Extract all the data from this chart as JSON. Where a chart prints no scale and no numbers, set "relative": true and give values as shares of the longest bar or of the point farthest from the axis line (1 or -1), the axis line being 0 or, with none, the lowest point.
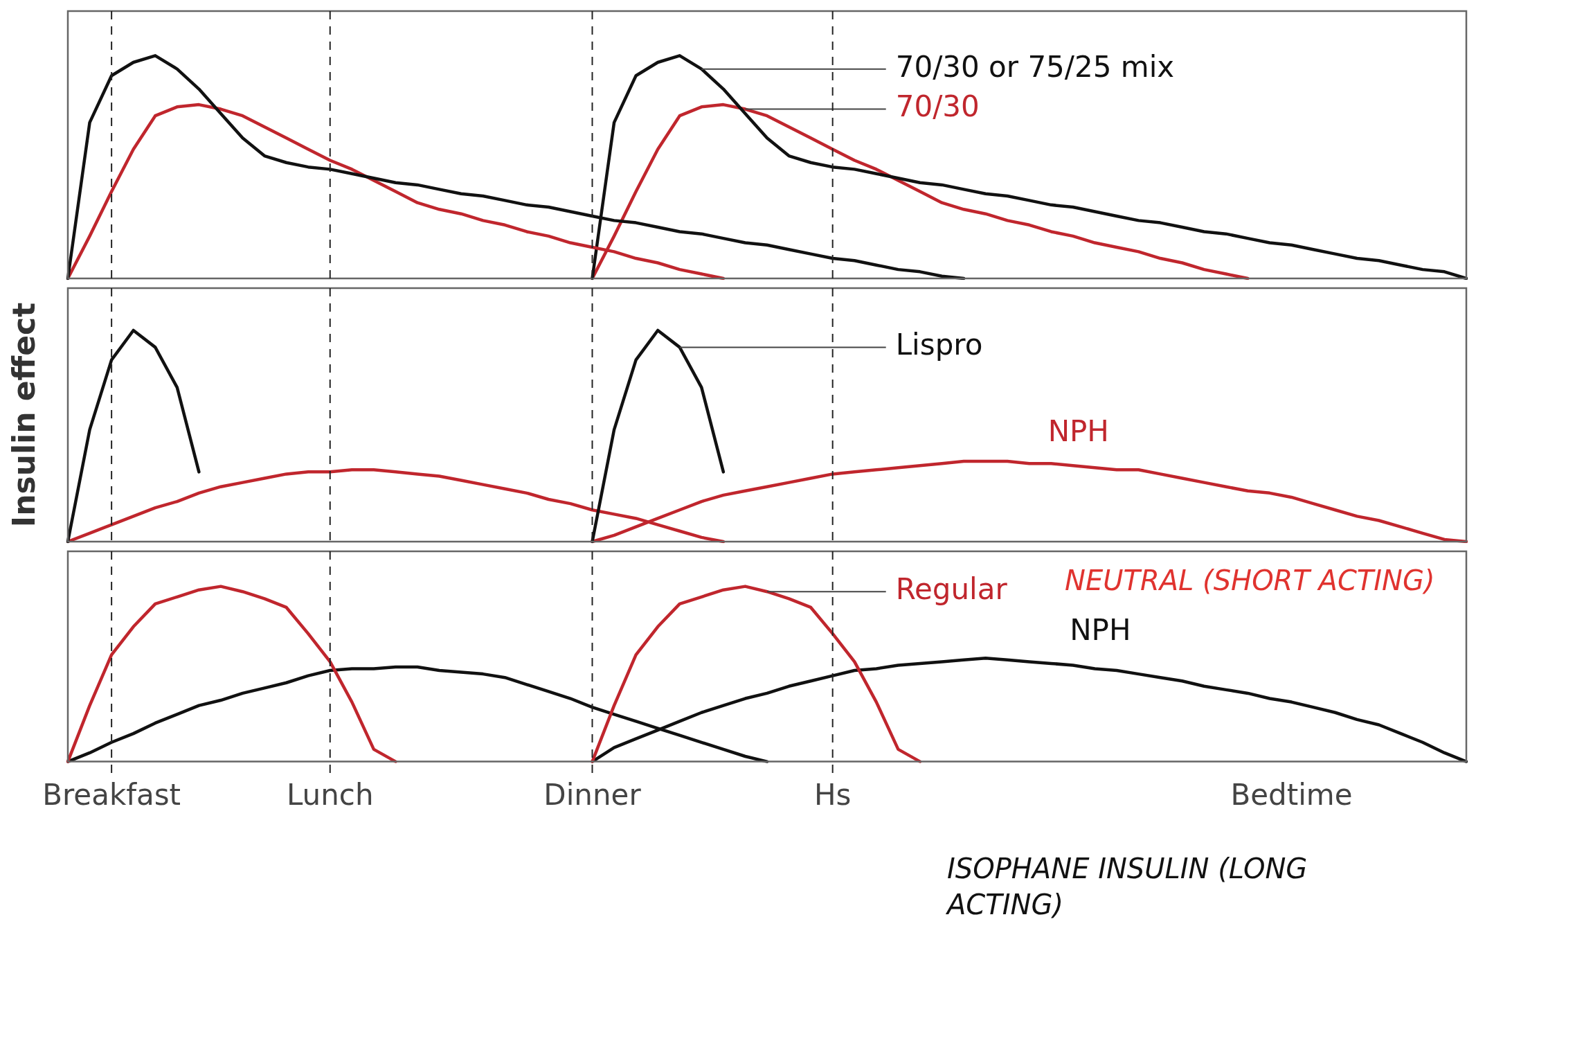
{
  "chart_data": [
    {
      "type": "line",
      "relative": true,
      "categories": [
        null,
        null,
        "Breakfast",
        null,
        null,
        null,
        null,
        null,
        null,
        null,
        null,
        null,
        "Lunch",
        null,
        null,
        null,
        null,
        null,
        null,
        null,
        null,
        null,
        null,
        null,
        "Dinner",
        null,
        null,
        null,
        null,
        null,
        null,
        null,
        null,
        null,
        null,
        "Hs",
        null,
        null,
        null,
        null,
        null,
        null,
        null,
        null,
        null,
        null,
        null,
        null,
        null,
        null,
        null,
        null,
        null,
        null,
        null,
        null,
        "Bedtime",
        null,
        null,
        null,
        null,
        null,
        null,
        null,
        null
      ],
      "tick_labels": false,
      "legend": false,
      "marker": "none",
      "line_style": "solid",
      "ref_lines": [
        {
          "axis": "x",
          "value": "Breakfast",
          "line_style": "dashed"
        },
        {
          "axis": "x",
          "value": "Lunch",
          "line_style": "dashed"
        },
        {
          "axis": "x",
          "value": "Dinner",
          "line_style": "dashed"
        },
        {
          "axis": "x",
          "value": "Hs",
          "line_style": "dashed"
        }
      ],
      "series": [
        {
          "color": "#111111",
          "values": [
            0,
            0.7,
            0.91,
            0.97,
            1,
            0.94,
            0.85,
            0.74,
            0.63,
            0.55,
            0.52,
            0.5,
            0.49,
            0.47,
            0.45,
            0.43,
            0.42,
            0.4,
            0.38,
            0.37,
            0.35,
            0.33,
            0.32,
            0.3,
            0.28,
            0.26,
            0.25,
            0.23,
            0.21,
            0.2,
            0.18,
            0.16,
            0.15,
            0.13,
            0.11,
            0.09,
            0.08,
            0.06,
            0.04,
            0.03,
            0.01,
            0,
            null,
            null,
            null,
            null,
            null,
            null,
            null,
            null,
            null,
            null,
            null,
            null,
            null,
            null,
            null,
            null,
            null,
            null,
            null,
            null,
            null,
            null,
            null
          ]
        },
        {
          "color": "#c0262d",
          "values": [
            0,
            0.19,
            0.39,
            0.58,
            0.73,
            0.77,
            0.78,
            0.76,
            0.73,
            0.68,
            0.63,
            0.58,
            0.53,
            0.49,
            0.44,
            0.39,
            0.34,
            0.31,
            0.29,
            0.26,
            0.24,
            0.21,
            0.19,
            0.16,
            0.14,
            0.12,
            0.09,
            0.07,
            0.04,
            0.02,
            0,
            null,
            null,
            null,
            null,
            null,
            null,
            null,
            null,
            null,
            null,
            null,
            null,
            null,
            null,
            null,
            null,
            null,
            null,
            null,
            null,
            null,
            null,
            null,
            null,
            null,
            null,
            null,
            null,
            null,
            null,
            null,
            null,
            null,
            null
          ]
        },
        {
          "name": "70/30 or 75/25 mix",
          "color": "#111111",
          "values": [
            null,
            null,
            null,
            null,
            null,
            null,
            null,
            null,
            null,
            null,
            null,
            null,
            null,
            null,
            null,
            null,
            null,
            null,
            null,
            null,
            null,
            null,
            null,
            null,
            0,
            0.7,
            0.91,
            0.97,
            1,
            0.94,
            0.85,
            0.74,
            0.63,
            0.55,
            0.52,
            0.5,
            0.49,
            0.47,
            0.45,
            0.43,
            0.42,
            0.4,
            0.38,
            0.37,
            0.35,
            0.33,
            0.32,
            0.3,
            0.28,
            0.26,
            0.25,
            0.23,
            0.21,
            0.2,
            0.18,
            0.16,
            0.15,
            0.13,
            0.11,
            0.09,
            0.08,
            0.06,
            0.04,
            0.03,
            0
          ]
        },
        {
          "name": "70/30",
          "color": "#c0262d",
          "values": [
            null,
            null,
            null,
            null,
            null,
            null,
            null,
            null,
            null,
            null,
            null,
            null,
            null,
            null,
            null,
            null,
            null,
            null,
            null,
            null,
            null,
            null,
            null,
            null,
            0,
            0.19,
            0.39,
            0.58,
            0.73,
            0.77,
            0.78,
            0.76,
            0.73,
            0.68,
            0.63,
            0.58,
            0.53,
            0.49,
            0.44,
            0.39,
            0.34,
            0.31,
            0.29,
            0.26,
            0.24,
            0.21,
            0.19,
            0.16,
            0.14,
            0.12,
            0.09,
            0.07,
            0.04,
            0.02,
            0,
            null,
            null,
            null,
            null,
            null,
            null,
            null,
            null,
            null,
            null
          ]
        }
      ]
    },
    {
      "type": "line",
      "relative": true,
      "ylabel": "Insulin effect",
      "categories": [
        null,
        null,
        "Breakfast",
        null,
        null,
        null,
        null,
        null,
        null,
        null,
        null,
        null,
        "Lunch",
        null,
        null,
        null,
        null,
        null,
        null,
        null,
        null,
        null,
        null,
        null,
        "Dinner",
        null,
        null,
        null,
        null,
        null,
        null,
        null,
        null,
        null,
        null,
        "Hs",
        null,
        null,
        null,
        null,
        null,
        null,
        null,
        null,
        null,
        null,
        null,
        null,
        null,
        null,
        null,
        null,
        null,
        null,
        null,
        null,
        "Bedtime",
        null,
        null,
        null,
        null,
        null,
        null,
        null,
        null
      ],
      "tick_labels": false,
      "legend": false,
      "marker": "none",
      "line_style": "solid",
      "ref_lines": [
        {
          "axis": "x",
          "value": "Breakfast",
          "line_style": "dashed"
        },
        {
          "axis": "x",
          "value": "Lunch",
          "line_style": "dashed"
        },
        {
          "axis": "x",
          "value": "Dinner",
          "line_style": "dashed"
        },
        {
          "axis": "x",
          "value": "Hs",
          "line_style": "dashed"
        }
      ],
      "series": [
        {
          "color": "#111111",
          "values": [
            0,
            0.53,
            0.86,
            1,
            0.92,
            0.73,
            0.33,
            null,
            null,
            null,
            null,
            null,
            null,
            null,
            null,
            null,
            null,
            null,
            null,
            null,
            null,
            null,
            null,
            null,
            null,
            null,
            null,
            null,
            null,
            null,
            null,
            null,
            null,
            null,
            null,
            null,
            null,
            null,
            null,
            null,
            null,
            null,
            null,
            null,
            null,
            null,
            null,
            null,
            null,
            null,
            null,
            null,
            null,
            null,
            null,
            null,
            null,
            null,
            null,
            null,
            null,
            null,
            null,
            null,
            null
          ]
        },
        {
          "name": "Lispro",
          "color": "#111111",
          "values": [
            null,
            null,
            null,
            null,
            null,
            null,
            null,
            null,
            null,
            null,
            null,
            null,
            null,
            null,
            null,
            null,
            null,
            null,
            null,
            null,
            null,
            null,
            null,
            null,
            0,
            0.53,
            0.86,
            1,
            0.92,
            0.73,
            0.33,
            null,
            null,
            null,
            null,
            null,
            null,
            null,
            null,
            null,
            null,
            null,
            null,
            null,
            null,
            null,
            null,
            null,
            null,
            null,
            null,
            null,
            null,
            null,
            null,
            null,
            null,
            null,
            null,
            null,
            null,
            null,
            null,
            null,
            null
          ]
        },
        {
          "color": "#c0262d",
          "values": [
            0,
            0.04,
            0.08,
            0.12,
            0.16,
            0.19,
            0.23,
            0.26,
            0.28,
            0.3,
            0.32,
            0.33,
            0.33,
            0.34,
            0.34,
            0.33,
            0.32,
            0.31,
            0.29,
            0.27,
            0.25,
            0.23,
            0.2,
            0.18,
            0.15,
            0.13,
            0.11,
            0.08,
            0.05,
            0.02,
            0,
            null,
            null,
            null,
            null,
            null,
            null,
            null,
            null,
            null,
            null,
            null,
            null,
            null,
            null,
            null,
            null,
            null,
            null,
            null,
            null,
            null,
            null,
            null,
            null,
            null,
            null,
            null,
            null,
            null,
            null,
            null,
            null,
            null,
            null
          ]
        },
        {
          "name": "NPH",
          "color": "#c0262d",
          "values": [
            null,
            null,
            null,
            null,
            null,
            null,
            null,
            null,
            null,
            null,
            null,
            null,
            null,
            null,
            null,
            null,
            null,
            null,
            null,
            null,
            null,
            null,
            null,
            null,
            0,
            0.03,
            0.07,
            0.11,
            0.15,
            0.19,
            0.22,
            0.24,
            0.26,
            0.28,
            0.3,
            0.32,
            0.33,
            0.34,
            0.35,
            0.36,
            0.37,
            0.38,
            0.38,
            0.38,
            0.37,
            0.37,
            0.36,
            0.35,
            0.34,
            0.34,
            0.32,
            0.3,
            0.28,
            0.26,
            0.24,
            0.23,
            0.21,
            0.18,
            0.15,
            0.12,
            0.1,
            0.07,
            0.04,
            0.01,
            0
          ]
        }
      ]
    },
    {
      "type": "line",
      "relative": true,
      "categories": [
        null,
        null,
        "Breakfast",
        null,
        null,
        null,
        null,
        null,
        null,
        null,
        null,
        null,
        "Lunch",
        null,
        null,
        null,
        null,
        null,
        null,
        null,
        null,
        null,
        null,
        null,
        "Dinner",
        null,
        null,
        null,
        null,
        null,
        null,
        null,
        null,
        null,
        null,
        "Hs",
        null,
        null,
        null,
        null,
        null,
        null,
        null,
        null,
        null,
        null,
        null,
        null,
        null,
        null,
        null,
        null,
        null,
        null,
        null,
        null,
        "Bedtime",
        null,
        null,
        null,
        null,
        null,
        null,
        null,
        null
      ],
      "tick_labels": "x",
      "legend": false,
      "marker": "none",
      "line_style": "solid",
      "ref_lines": [
        {
          "axis": "x",
          "value": "Breakfast",
          "line_style": "dashed"
        },
        {
          "axis": "x",
          "value": "Lunch",
          "line_style": "dashed"
        },
        {
          "axis": "x",
          "value": "Dinner",
          "line_style": "dashed"
        },
        {
          "axis": "x",
          "value": "Hs",
          "line_style": "dashed"
        }
      ],
      "annotations": [
        "NEUTRAL (SHORT ACTING)",
        "ISOPHANE INSULIN (LONG ACTING)"
      ],
      "series": [
        {
          "color": "#c0262d",
          "values": [
            0,
            0.32,
            0.61,
            0.77,
            0.9,
            0.94,
            0.98,
            1,
            0.97,
            0.93,
            0.88,
            0.73,
            0.57,
            0.34,
            0.07,
            0,
            null,
            null,
            null,
            null,
            null,
            null,
            null,
            null,
            null,
            null,
            null,
            null,
            null,
            null,
            null,
            null,
            null,
            null,
            null,
            null,
            null,
            null,
            null,
            null,
            null,
            null,
            null,
            null,
            null,
            null,
            null,
            null,
            null,
            null,
            null,
            null,
            null,
            null,
            null,
            null,
            null,
            null,
            null,
            null,
            null,
            null,
            null,
            null,
            null
          ]
        },
        {
          "name": "Regular",
          "color": "#c0262d",
          "values": [
            null,
            null,
            null,
            null,
            null,
            null,
            null,
            null,
            null,
            null,
            null,
            null,
            null,
            null,
            null,
            null,
            null,
            null,
            null,
            null,
            null,
            null,
            null,
            null,
            0,
            0.32,
            0.61,
            0.77,
            0.9,
            0.94,
            0.98,
            1,
            0.97,
            0.93,
            0.88,
            0.73,
            0.57,
            0.34,
            0.07,
            0,
            null,
            null,
            null,
            null,
            null,
            null,
            null,
            null,
            null,
            null,
            null,
            null,
            null,
            null,
            null,
            null,
            null,
            null,
            null,
            null,
            null,
            null,
            null,
            null,
            null
          ]
        },
        {
          "color": "#111111",
          "values": [
            0,
            0.05,
            0.11,
            0.16,
            0.22,
            0.27,
            0.32,
            0.35,
            0.39,
            0.42,
            0.45,
            0.49,
            0.52,
            0.53,
            0.53,
            0.54,
            0.54,
            0.52,
            0.51,
            0.5,
            0.48,
            0.44,
            0.4,
            0.36,
            0.31,
            0.27,
            0.23,
            0.19,
            0.15,
            0.11,
            0.07,
            0.03,
            0,
            null,
            null,
            null,
            null,
            null,
            null,
            null,
            null,
            null,
            null,
            null,
            null,
            null,
            null,
            null,
            null,
            null,
            null,
            null,
            null,
            null,
            null,
            null,
            null,
            null,
            null,
            null,
            null,
            null,
            null,
            null,
            null
          ]
        },
        {
          "name": "NPH",
          "color": "#111111",
          "values": [
            null,
            null,
            null,
            null,
            null,
            null,
            null,
            null,
            null,
            null,
            null,
            null,
            null,
            null,
            null,
            null,
            null,
            null,
            null,
            null,
            null,
            null,
            null,
            null,
            0,
            0.08,
            0.13,
            0.18,
            0.23,
            0.28,
            0.32,
            0.36,
            0.39,
            0.43,
            0.46,
            0.49,
            0.52,
            0.53,
            0.55,
            0.56,
            0.57,
            0.58,
            0.59,
            0.58,
            0.57,
            0.56,
            0.55,
            0.53,
            0.52,
            0.5,
            0.48,
            0.46,
            0.43,
            0.41,
            0.39,
            0.36,
            0.34,
            0.31,
            0.28,
            0.24,
            0.21,
            0.16,
            0.11,
            0.05,
            0
          ]
        }
      ]
    }
  ]
}
